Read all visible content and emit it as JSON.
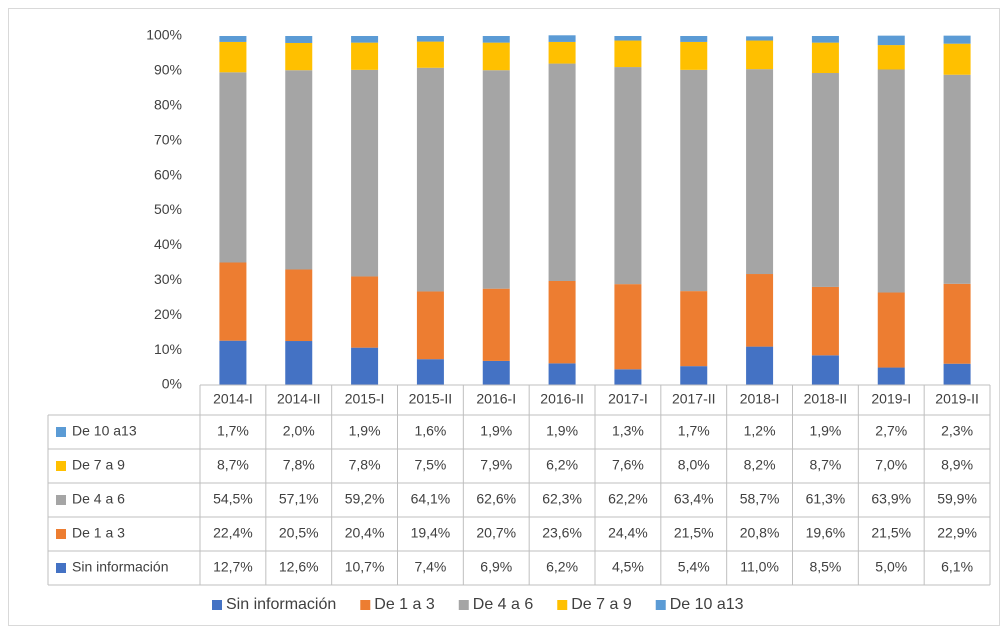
{
  "chart_data": {
    "type": "stacked_bar_percent",
    "categories": [
      "2014-I",
      "2014-II",
      "2015-I",
      "2015-II",
      "2016-I",
      "2016-II",
      "2017-I",
      "2017-II",
      "2018-I",
      "2018-II",
      "2019-I",
      "2019-II"
    ],
    "series": [
      {
        "name": "Sin información",
        "color": "#4472c4",
        "values": [
          12.7,
          12.6,
          10.7,
          7.4,
          6.9,
          6.2,
          4.5,
          5.4,
          11.0,
          8.5,
          5.0,
          6.1
        ],
        "value_labels": [
          "12,7%",
          "12,6%",
          "10,7%",
          "7,4%",
          "6,9%",
          "6,2%",
          "4,5%",
          "5,4%",
          "11,0%",
          "8,5%",
          "5,0%",
          "6,1%"
        ]
      },
      {
        "name": "De 1 a 3",
        "color": "#ed7d31",
        "values": [
          22.4,
          20.5,
          20.4,
          19.4,
          20.7,
          23.6,
          24.4,
          21.5,
          20.8,
          19.6,
          21.5,
          22.9
        ],
        "value_labels": [
          "22,4%",
          "20,5%",
          "20,4%",
          "19,4%",
          "20,7%",
          "23,6%",
          "24,4%",
          "21,5%",
          "20,8%",
          "19,6%",
          "21,5%",
          "22,9%"
        ]
      },
      {
        "name": "De 4 a 6",
        "color": "#a5a5a5",
        "values": [
          54.5,
          57.1,
          59.2,
          64.1,
          62.6,
          62.3,
          62.2,
          63.4,
          58.7,
          61.3,
          63.9,
          59.9
        ],
        "value_labels": [
          "54,5%",
          "57,1%",
          "59,2%",
          "64,1%",
          "62,6%",
          "62,3%",
          "62,2%",
          "63,4%",
          "58,7%",
          "61,3%",
          "63,9%",
          "59,9%"
        ]
      },
      {
        "name": "De 7 a 9",
        "color": "#ffc000",
        "values": [
          8.7,
          7.8,
          7.8,
          7.5,
          7.9,
          6.2,
          7.6,
          8.0,
          8.2,
          8.7,
          7.0,
          8.9
        ],
        "value_labels": [
          "8,7%",
          "7,8%",
          "7,8%",
          "7,5%",
          "7,9%",
          "6,2%",
          "7,6%",
          "8,0%",
          "8,2%",
          "8,7%",
          "7,0%",
          "8,9%"
        ]
      },
      {
        "name": "De 10 a13",
        "color": "#5b9bd5",
        "values": [
          1.7,
          2.0,
          1.9,
          1.6,
          1.9,
          1.9,
          1.3,
          1.7,
          1.2,
          1.9,
          2.7,
          2.3
        ],
        "value_labels": [
          "1,7%",
          "2,0%",
          "1,9%",
          "1,6%",
          "1,9%",
          "1,9%",
          "1,3%",
          "1,7%",
          "1,2%",
          "1,9%",
          "2,7%",
          "2,3%"
        ]
      }
    ],
    "ylim": [
      0,
      100
    ],
    "yticks": [
      {
        "value": 0,
        "label": "0%"
      },
      {
        "value": 10,
        "label": "10%"
      },
      {
        "value": 20,
        "label": "20%"
      },
      {
        "value": 30,
        "label": "30%"
      },
      {
        "value": 40,
        "label": "40%"
      },
      {
        "value": 50,
        "label": "50%"
      },
      {
        "value": 60,
        "label": "60%"
      },
      {
        "value": 70,
        "label": "70%"
      },
      {
        "value": 80,
        "label": "80%"
      },
      {
        "value": 90,
        "label": "90%"
      },
      {
        "value": 100,
        "label": "100%"
      }
    ],
    "grid": false,
    "legend": "bottom"
  }
}
